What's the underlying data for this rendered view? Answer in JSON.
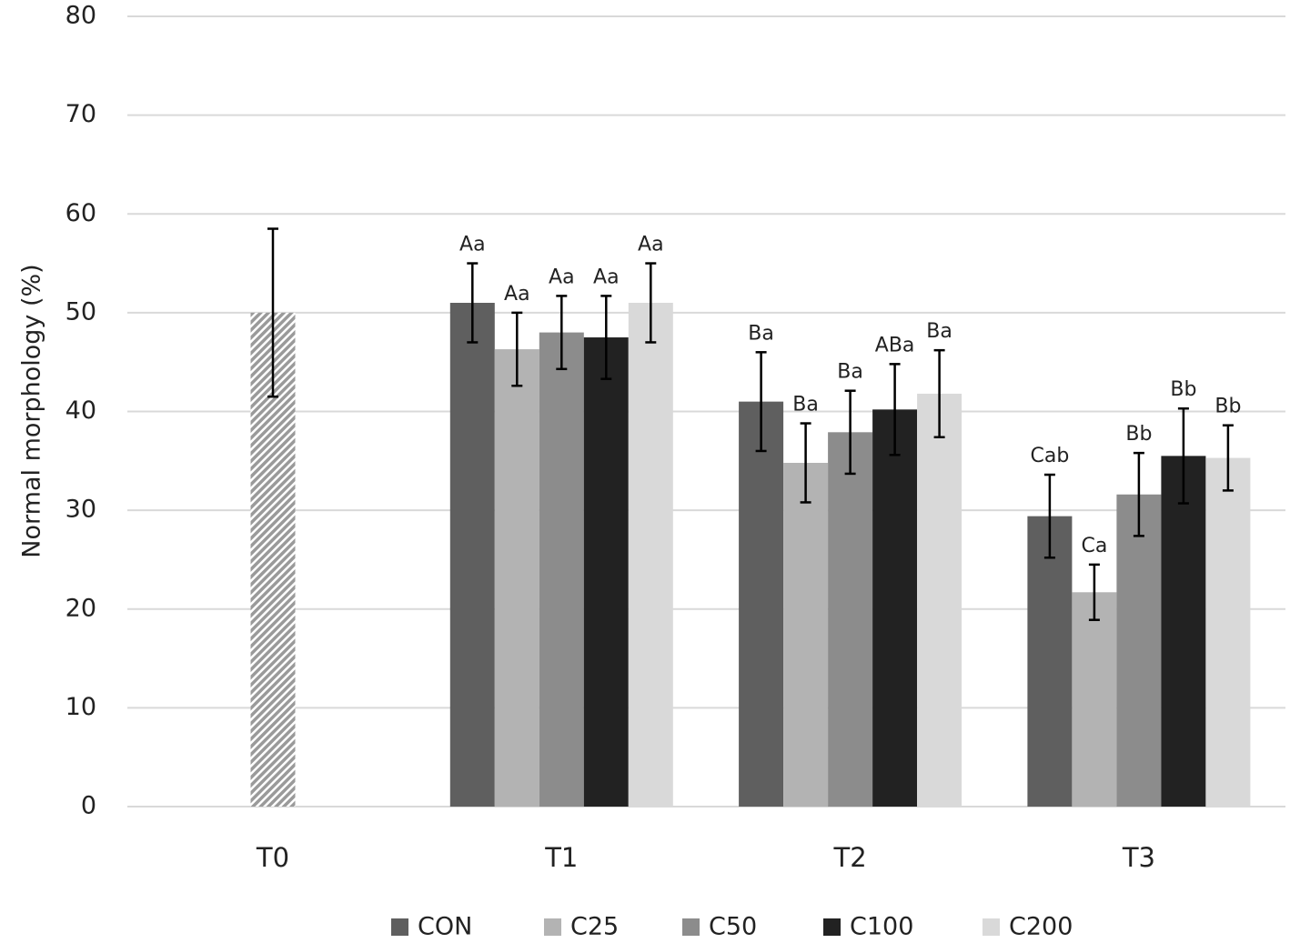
{
  "chart_data": {
    "type": "bar",
    "y_label": "Normal morphology (%)",
    "categories": [
      "T0",
      "T1",
      "T2",
      "T3"
    ],
    "t0_bar": {
      "value": 50,
      "error": 8.5,
      "color": "#9a9a9a"
    },
    "series": [
      {
        "name": "CON",
        "color": "#5f5f5f",
        "values": [
          null,
          51,
          41,
          29.4
        ],
        "errors": [
          null,
          4,
          5,
          4.2
        ],
        "annotations": [
          null,
          "Aa",
          "Ba",
          "Cab"
        ]
      },
      {
        "name": "C25",
        "color": "#b3b3b3",
        "values": [
          null,
          46.3,
          34.8,
          21.7
        ],
        "errors": [
          null,
          3.7,
          4,
          2.8
        ],
        "annotations": [
          null,
          "Aa",
          "Ba",
          "Ca"
        ]
      },
      {
        "name": "C50",
        "color": "#8c8c8c",
        "values": [
          null,
          48,
          37.9,
          31.6
        ],
        "errors": [
          null,
          3.7,
          4.2,
          4.2
        ],
        "annotations": [
          null,
          "Aa",
          "Ba",
          "Bb"
        ]
      },
      {
        "name": "C100",
        "color": "#222222",
        "values": [
          null,
          47.5,
          40.2,
          35.5
        ],
        "errors": [
          null,
          4.2,
          4.6,
          4.8
        ],
        "annotations": [
          null,
          "Aa",
          "ABa",
          "Bb"
        ]
      },
      {
        "name": "C200",
        "color": "#d9d9d9",
        "values": [
          null,
          51,
          41.8,
          35.3
        ],
        "errors": [
          null,
          4,
          4.4,
          3.3
        ],
        "annotations": [
          null,
          "Aa",
          "Ba",
          "Bb"
        ]
      }
    ],
    "ylim": [
      0,
      80
    ],
    "yticks": [
      0,
      10,
      20,
      30,
      40,
      50,
      60,
      70,
      80
    ],
    "grid": true,
    "legend": "bottom"
  }
}
